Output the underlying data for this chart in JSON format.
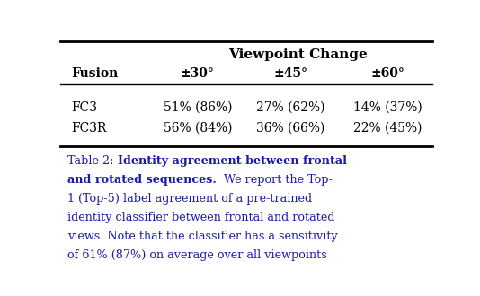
{
  "title_row": "Viewpoint Change",
  "col_headers": [
    "Fusion",
    "±30°",
    "±45°",
    "±60°"
  ],
  "rows": [
    [
      "FC3",
      "51% (86%)",
      "27% (62%)",
      "14% (37%)"
    ],
    [
      "FC3R",
      "56% (84%)",
      "36% (66%)",
      "22% (45%)"
    ]
  ],
  "caption_label": "Table 2:",
  "caption_bold": "Identity agreement between frontal and rotated sequences.",
  "caption_normal": "  We report the Top-1 (Top-5) label agreement of a pre-trained identity classifier between frontal and rotated views. Note that the classifier has a sensitivity of 61% (87%) on average over all viewpoints",
  "bg_color": "#ffffff",
  "table_text_color": "#000000",
  "caption_text_color": "#1a1aaa",
  "fig_width": 5.34,
  "fig_height": 3.3,
  "dpi": 100
}
